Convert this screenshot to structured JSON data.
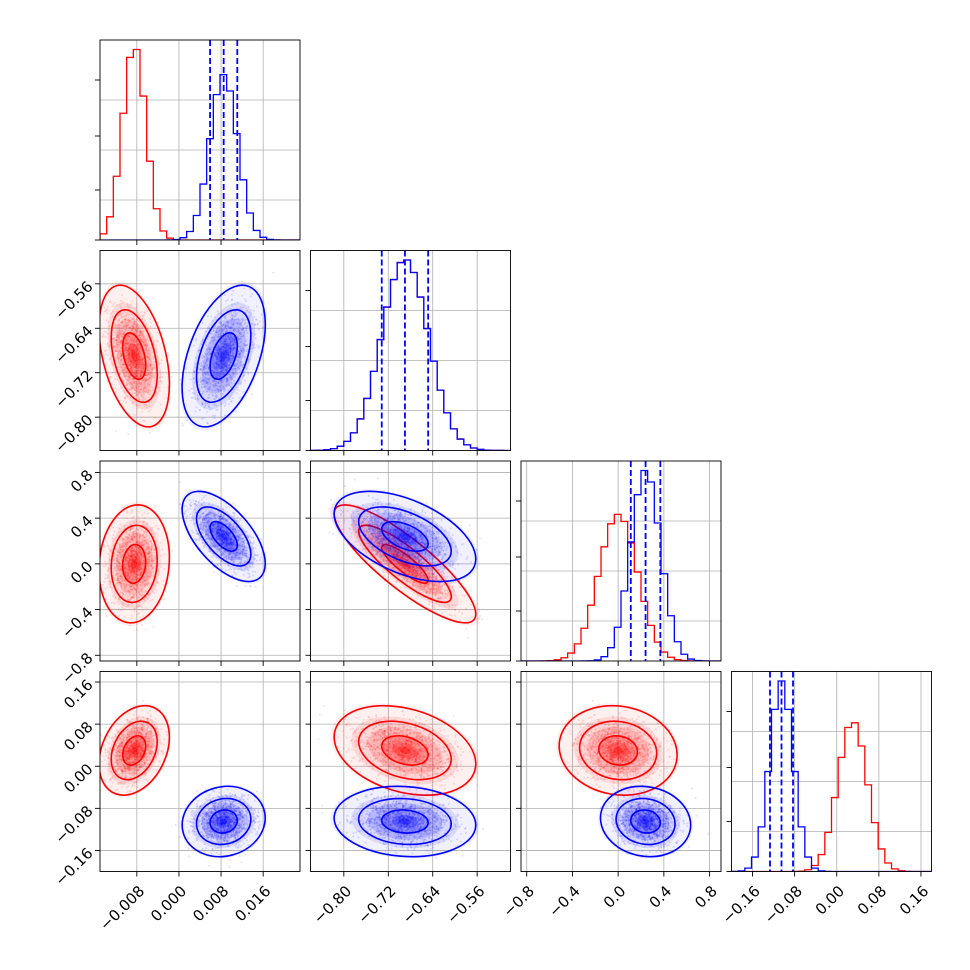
{
  "chart_data": {
    "type": "corner",
    "grid": true,
    "parameters": [
      {
        "range": [
          -0.015,
          0.023
        ],
        "ticks": [
          -0.008,
          0.0,
          0.008,
          0.016
        ],
        "tick_labels": [
          "−0.008",
          "0.000",
          "0.008",
          "0.016"
        ]
      },
      {
        "range": [
          -0.86,
          -0.5
        ],
        "ticks": [
          -0.8,
          -0.72,
          -0.64,
          -0.56
        ],
        "tick_labels": [
          "−0.80",
          "−0.72",
          "−0.64",
          "−0.56"
        ]
      },
      {
        "range": [
          -0.85,
          0.9
        ],
        "ticks": [
          -0.8,
          -0.4,
          0.0,
          0.4,
          0.8
        ],
        "tick_labels": [
          "−0.8",
          "−0.4",
          "0.0",
          "0.4",
          "0.8"
        ]
      },
      {
        "range": [
          -0.2,
          0.18
        ],
        "ticks": [
          -0.16,
          -0.08,
          0.0,
          0.08,
          0.16
        ],
        "tick_labels": [
          "−0.16",
          "−0.08",
          "0.00",
          "0.08",
          "0.16"
        ]
      }
    ],
    "series": [
      {
        "color": "#ff0000",
        "mean": [
          -0.0085,
          -0.69,
          0.0,
          0.03
        ],
        "std": [
          0.0022,
          0.042,
          0.17,
          0.028
        ],
        "correlations": {
          "0-1": -0.4,
          "0-2": 0.1,
          "0-3": 0.3,
          "1-2": -0.85,
          "1-3": -0.3,
          "2-3": -0.1
        }
      },
      {
        "color": "#0000ff",
        "mean": [
          0.0085,
          -0.69,
          0.24,
          -0.105
        ],
        "std": [
          0.0026,
          0.042,
          0.13,
          0.022
        ],
        "correlations": {
          "0-1": 0.45,
          "0-2": -0.6,
          "0-3": 0.1,
          "1-2": -0.5,
          "1-3": -0.1,
          "2-3": -0.1
        }
      }
    ],
    "quantile_lines": {
      "color": "#0000ff",
      "quantiles": [
        0.16,
        0.5,
        0.84
      ]
    },
    "contour_levels": [
      0.39,
      0.86,
      0.99
    ]
  }
}
